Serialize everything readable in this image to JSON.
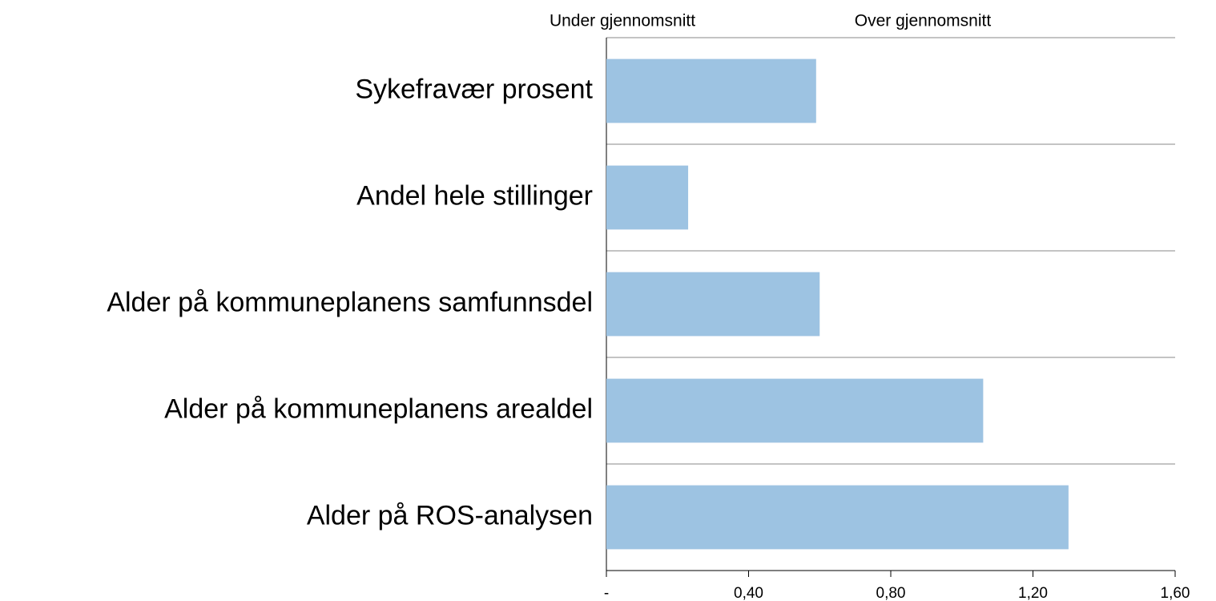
{
  "chart_data": {
    "type": "hbar",
    "annotations": [
      "Under gjennomsnitt",
      "Over gjennomsnitt"
    ],
    "categories": [
      "Sykefravær prosent",
      "Andel hele stillinger",
      "Alder på kommuneplanens samfunnsdel",
      "Alder på kommuneplanens arealdel",
      "Alder på ROS-analysen"
    ],
    "values": [
      0.59,
      0.23,
      0.6,
      1.06,
      1.3
    ],
    "color": "#9dc3e2",
    "xlim": [
      0,
      1.6
    ],
    "xticks": [
      {
        "value": 0,
        "label": "-"
      },
      {
        "value": 0.4,
        "label": "0,40"
      },
      {
        "value": 0.8,
        "label": "0,80"
      },
      {
        "value": 1.2,
        "label": "1,20"
      },
      {
        "value": 1.6,
        "label": "1,60"
      }
    ]
  }
}
